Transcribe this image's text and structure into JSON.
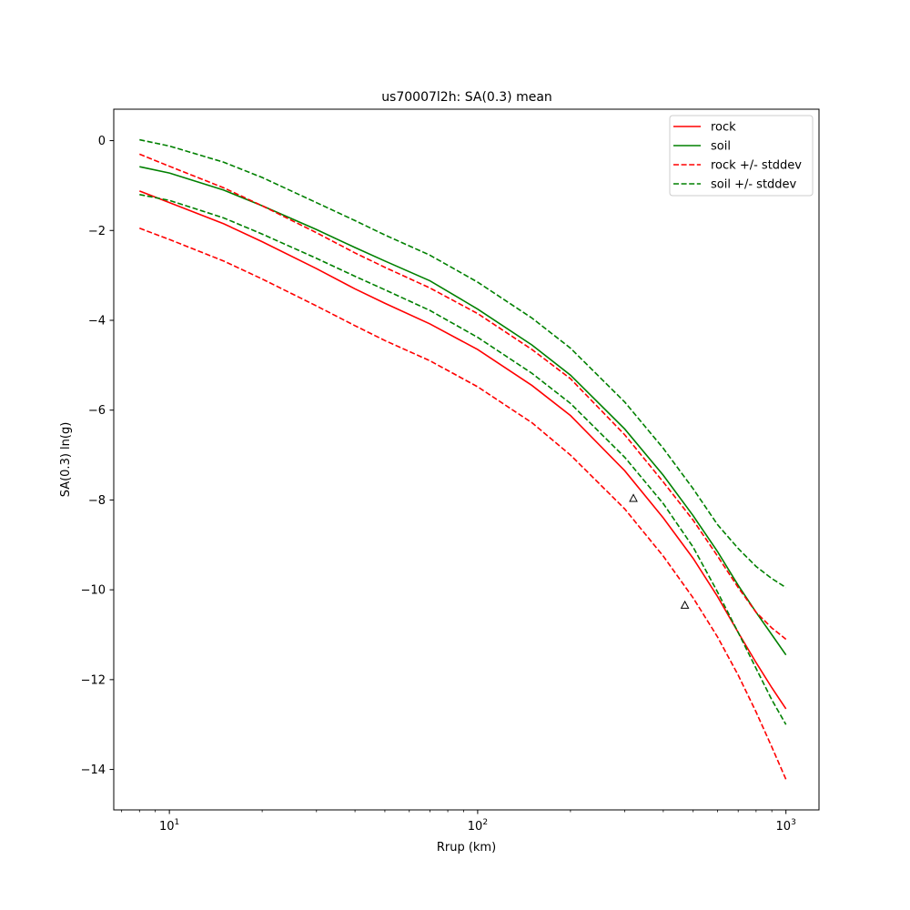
{
  "chart_data": {
    "type": "line",
    "title": "us70007l2h: SA(0.3) mean",
    "xlabel": "Rrup (km)",
    "ylabel": "SA(0.3) ln(g)",
    "xscale": "log",
    "xlim": [
      6.6,
      1280
    ],
    "ylim": [
      -14.9,
      0.7
    ],
    "x_ticks": [
      {
        "value": 10,
        "base": "10",
        "exp": "1"
      },
      {
        "value": 100,
        "base": "10",
        "exp": "2"
      },
      {
        "value": 1000,
        "base": "10",
        "exp": "3"
      }
    ],
    "y_ticks": [
      0,
      -2,
      -4,
      -6,
      -8,
      -10,
      -12,
      -14
    ],
    "y_tick_labels": [
      "0",
      "−2",
      "−4",
      "−6",
      "−8",
      "−10",
      "−12",
      "−14"
    ],
    "legend_position": "top-right",
    "x": [
      8,
      10,
      15,
      20,
      30,
      40,
      50,
      70,
      100,
      150,
      200,
      300,
      400,
      500,
      600,
      700,
      800,
      900,
      1000
    ],
    "series": [
      {
        "name": "rock",
        "color": "#ff0000",
        "dash": "solid",
        "values": [
          -1.12,
          -1.38,
          -1.85,
          -2.25,
          -2.85,
          -3.3,
          -3.62,
          -4.08,
          -4.65,
          -5.45,
          -6.12,
          -7.35,
          -8.4,
          -9.3,
          -10.15,
          -10.95,
          -11.62,
          -12.18,
          -12.65
        ]
      },
      {
        "name": "soil",
        "color": "#008000",
        "dash": "solid",
        "values": [
          -0.58,
          -0.72,
          -1.1,
          -1.45,
          -1.98,
          -2.38,
          -2.68,
          -3.12,
          -3.75,
          -4.55,
          -5.22,
          -6.42,
          -7.45,
          -8.35,
          -9.15,
          -9.9,
          -10.5,
          -11.0,
          -11.45
        ]
      },
      {
        "name": "rock +/- stddev",
        "color": "#ff0000",
        "dash": "dashed",
        "values": [
          -0.3,
          -0.57,
          -1.05,
          -1.45,
          -2.05,
          -2.5,
          -2.82,
          -3.28,
          -3.85,
          -4.65,
          -5.3,
          -6.55,
          -7.6,
          -8.45,
          -9.25,
          -9.95,
          -10.5,
          -10.85,
          -11.1
        ]
      },
      {
        "name": "rock +/- stddev (lower)",
        "color": "#ff0000",
        "dash": "dashed",
        "values": [
          -1.95,
          -2.2,
          -2.68,
          -3.08,
          -3.68,
          -4.12,
          -4.45,
          -4.9,
          -5.48,
          -6.28,
          -7.0,
          -8.2,
          -9.25,
          -10.18,
          -11.05,
          -11.9,
          -12.72,
          -13.5,
          -14.22
        ]
      },
      {
        "name": "soil +/- stddev",
        "color": "#008000",
        "dash": "dashed",
        "values": [
          0.02,
          -0.12,
          -0.48,
          -0.82,
          -1.38,
          -1.78,
          -2.1,
          -2.55,
          -3.15,
          -3.95,
          -4.62,
          -5.82,
          -6.85,
          -7.75,
          -8.55,
          -9.08,
          -9.48,
          -9.75,
          -9.95
        ]
      },
      {
        "name": "soil +/- stddev (lower)",
        "color": "#008000",
        "dash": "dashed",
        "values": [
          -1.2,
          -1.33,
          -1.72,
          -2.08,
          -2.62,
          -3.02,
          -3.32,
          -3.78,
          -4.38,
          -5.18,
          -5.85,
          -7.05,
          -8.08,
          -9.05,
          -10.05,
          -10.95,
          -11.75,
          -12.45,
          -13.0
        ]
      }
    ],
    "points": {
      "marker": "triangle",
      "x": [
        320,
        470
      ],
      "y": [
        -7.97,
        -10.35
      ]
    },
    "legend": [
      {
        "label": "rock",
        "color": "#ff0000",
        "dash": "solid"
      },
      {
        "label": "soil",
        "color": "#008000",
        "dash": "solid"
      },
      {
        "label": "rock +/- stddev",
        "color": "#ff0000",
        "dash": "dashed"
      },
      {
        "label": "soil +/- stddev",
        "color": "#008000",
        "dash": "dashed"
      }
    ]
  }
}
